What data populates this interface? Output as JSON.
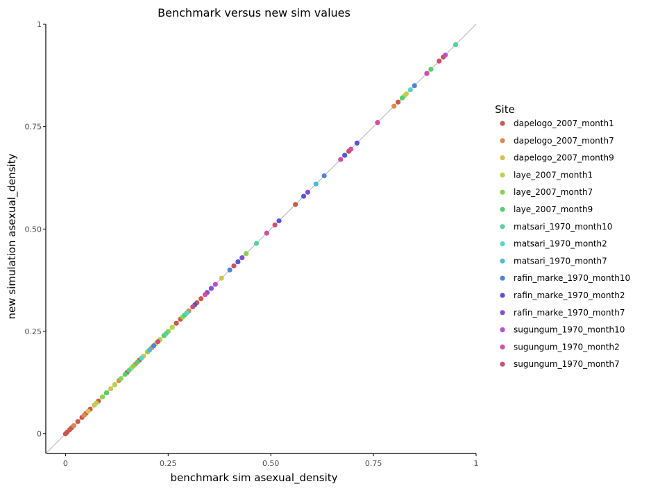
{
  "chart_data": {
    "type": "scatter",
    "title": "Benchmark versus new sim values",
    "xlabel": "benchmark sim asexual_density",
    "ylabel": "new simulation asexual_density",
    "xlim": [
      -0.048,
      1.0
    ],
    "ylim": [
      -0.048,
      1.0
    ],
    "xticks": [
      0,
      0.25,
      0.5,
      0.75,
      1
    ],
    "xtick_labels": [
      "0",
      "0.25",
      "0.50",
      "0.75",
      "1"
    ],
    "yticks": [
      0,
      0.25,
      0.5,
      0.75,
      1
    ],
    "ytick_labels": [
      "0",
      "0.25",
      "0.50",
      "0.75",
      "1"
    ],
    "grid": false,
    "reference_line": "y = x",
    "legend": {
      "title": "Site",
      "position": "right"
    },
    "series": [
      {
        "name": "dapelogo_2007_month1",
        "color": "#C9584D",
        "x": [
          0.0,
          0.004,
          0.01,
          0.015,
          0.02,
          0.03,
          0.04,
          0.05,
          0.06,
          0.08,
          0.1,
          0.12,
          0.15,
          0.18,
          0.2,
          0.23,
          0.24,
          0.27,
          0.28,
          0.3,
          0.32,
          0.33,
          0.56,
          0.69,
          0.81,
          0.92
        ],
        "y": [
          0.0,
          0.004,
          0.01,
          0.015,
          0.02,
          0.03,
          0.04,
          0.05,
          0.06,
          0.08,
          0.1,
          0.12,
          0.15,
          0.18,
          0.2,
          0.23,
          0.24,
          0.27,
          0.28,
          0.3,
          0.32,
          0.33,
          0.56,
          0.69,
          0.81,
          0.92
        ]
      },
      {
        "name": "dapelogo_2007_month7",
        "color": "#D88C4E",
        "x": [
          0.02,
          0.045,
          0.09,
          0.13,
          0.17,
          0.21,
          0.26,
          0.3,
          0.8
        ],
        "y": [
          0.02,
          0.045,
          0.09,
          0.13,
          0.17,
          0.21,
          0.26,
          0.3,
          0.8
        ]
      },
      {
        "name": "dapelogo_2007_month9",
        "color": "#D6C34E",
        "x": [
          0.055,
          0.07,
          0.11,
          0.19,
          0.22,
          0.25,
          0.38,
          0.44,
          0.51,
          0.83
        ],
        "y": [
          0.055,
          0.07,
          0.11,
          0.19,
          0.22,
          0.25,
          0.38,
          0.44,
          0.51,
          0.83
        ]
      },
      {
        "name": "laye_2007_month1",
        "color": "#B6D64E",
        "x": [
          0.075,
          0.12,
          0.16,
          0.23,
          0.26,
          0.43,
          0.825
        ],
        "y": [
          0.075,
          0.12,
          0.16,
          0.23,
          0.26,
          0.43,
          0.825
        ]
      },
      {
        "name": "laye_2007_month7",
        "color": "#87D44E",
        "x": [
          0.09,
          0.135,
          0.165,
          0.2,
          0.25,
          0.285,
          0.44
        ],
        "y": [
          0.09,
          0.135,
          0.165,
          0.2,
          0.25,
          0.285,
          0.44
        ]
      },
      {
        "name": "laye_2007_month9",
        "color": "#56D06A",
        "x": [
          0.1,
          0.145,
          0.175,
          0.24,
          0.29,
          0.82,
          0.89
        ],
        "y": [
          0.1,
          0.145,
          0.175,
          0.24,
          0.29,
          0.82,
          0.89
        ]
      },
      {
        "name": "matsari_1970_month10",
        "color": "#53D39A",
        "x": [
          0.155,
          0.245,
          0.465,
          0.95
        ],
        "y": [
          0.155,
          0.245,
          0.465,
          0.95
        ]
      },
      {
        "name": "matsari_1970_month2",
        "color": "#55D5C9",
        "x": [
          0.185,
          0.295,
          0.84
        ],
        "y": [
          0.185,
          0.295,
          0.84
        ]
      },
      {
        "name": "matsari_1970_month7",
        "color": "#4FB9D6",
        "x": [
          0.205,
          0.61,
          0.68
        ],
        "y": [
          0.205,
          0.61,
          0.68
        ]
      },
      {
        "name": "rafin_marke_1970_month10",
        "color": "#4F86D3",
        "x": [
          0.215,
          0.4,
          0.63,
          0.71,
          0.85
        ],
        "y": [
          0.215,
          0.4,
          0.63,
          0.71,
          0.85
        ]
      },
      {
        "name": "rafin_marke_1970_month2",
        "color": "#5755CF",
        "x": [
          0.315,
          0.42,
          0.52,
          0.58,
          0.68,
          0.71
        ],
        "y": [
          0.315,
          0.42,
          0.52,
          0.58,
          0.68,
          0.71
        ]
      },
      {
        "name": "rafin_marke_1970_month7",
        "color": "#8550CE",
        "x": [
          0.345,
          0.355,
          0.43,
          0.59,
          0.88
        ],
        "y": [
          0.345,
          0.355,
          0.43,
          0.59,
          0.88
        ]
      },
      {
        "name": "sugungum_1970_month10",
        "color": "#BD4FCE",
        "x": [
          0.365,
          0.76,
          0.925
        ],
        "y": [
          0.365,
          0.76,
          0.925
        ]
      },
      {
        "name": "sugungum_1970_month2",
        "color": "#D14FA5",
        "x": [
          0.34,
          0.49,
          0.67,
          0.695,
          0.76,
          0.88
        ],
        "y": [
          0.34,
          0.49,
          0.67,
          0.695,
          0.76,
          0.88
        ]
      },
      {
        "name": "sugungum_1970_month7",
        "color": "#CC4F73",
        "x": [
          0.225,
          0.31,
          0.41,
          0.51,
          0.69,
          0.91
        ],
        "y": [
          0.225,
          0.31,
          0.41,
          0.51,
          0.69,
          0.91
        ]
      }
    ]
  }
}
